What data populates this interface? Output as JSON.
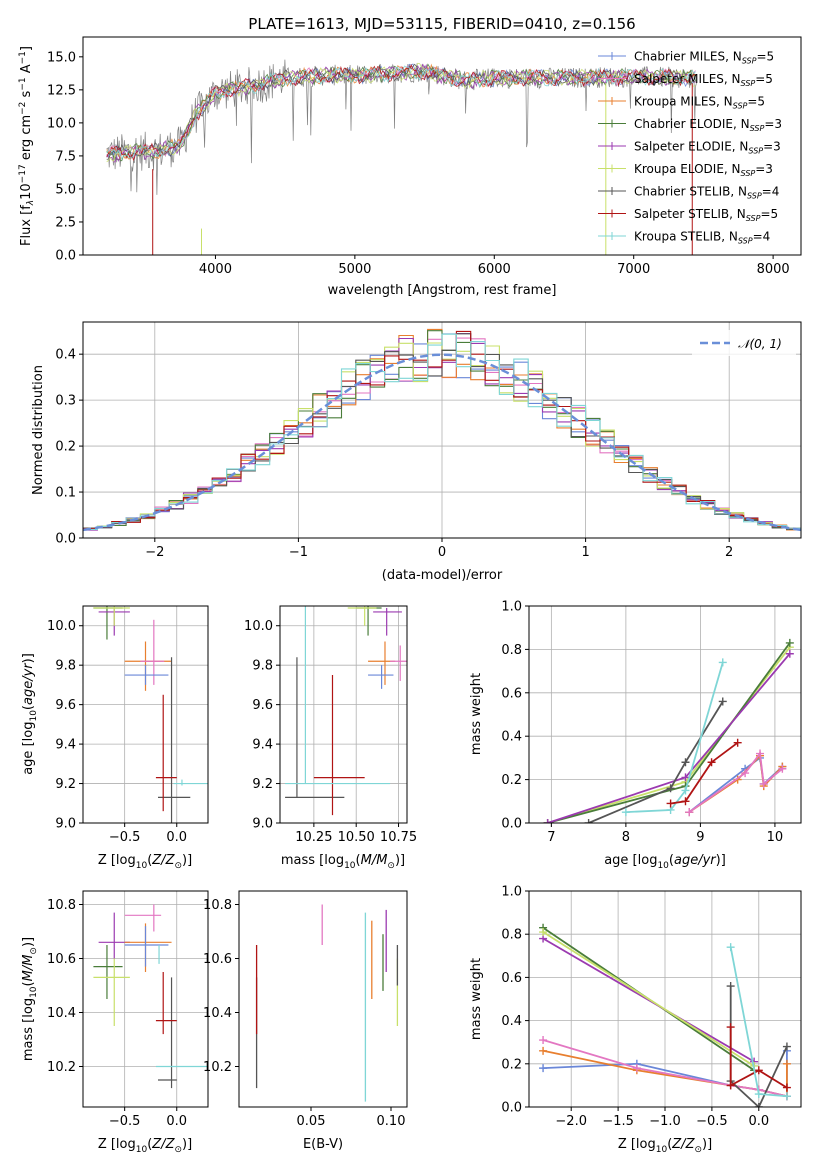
{
  "title": "PLATE=1613, MJD=53115, FIBERID=0410, z=0.156",
  "colors": {
    "chabrier_miles": "#6a87d8",
    "salpeter_miles": "#e377c2",
    "kroupa_miles": "#e87f2f",
    "chabrier_elodie": "#4a7d3a",
    "salpeter_elodie": "#9b3ab0",
    "kroupa_elodie": "#c8e06a",
    "chabrier_stelib": "#555555",
    "salpeter_stelib": "#b01414",
    "kroupa_stelib": "#7fd6d6",
    "data": "#808080"
  },
  "legend": {
    "labels": [
      {
        "pre": "Chabrier MILES, N",
        "sub": "SSP",
        "post": "=5"
      },
      {
        "pre": "Salpeter MILES, N",
        "sub": "SSP",
        "post": "=5"
      },
      {
        "pre": "Kroupa MILES, N",
        "sub": "SSP",
        "post": "=5"
      },
      {
        "pre": "Chabrier ELODIE, N",
        "sub": "SSP",
        "post": "=3"
      },
      {
        "pre": "Salpeter ELODIE, N",
        "sub": "SSP",
        "post": "=3"
      },
      {
        "pre": "Kroupa ELODIE, N",
        "sub": "SSP",
        "post": "=3"
      },
      {
        "pre": "Chabrier STELIB, N",
        "sub": "SSP",
        "post": "=4"
      },
      {
        "pre": "Salpeter STELIB, N",
        "sub": "SSP",
        "post": "=5"
      },
      {
        "pre": "Kroupa STELIB, N",
        "sub": "SSP",
        "post": "=4"
      }
    ],
    "normal_label": "𝒩(0, 1)"
  },
  "chart_data": [
    {
      "type": "line",
      "name": "spectrum",
      "xlabel": "wavelength [Angstrom, rest frame]",
      "ylabel_parts": [
        "Flux [f",
        "λ",
        "10",
        "−17",
        " erg cm",
        "−2",
        " s",
        "−1",
        " A",
        "−1",
        "]"
      ],
      "xlim": [
        3050,
        8200
      ],
      "ylim": [
        0,
        16.5
      ],
      "xticks": [
        4000,
        5000,
        6000,
        7000,
        8000
      ],
      "yticks": [
        0.0,
        2.5,
        5.0,
        7.5,
        10.0,
        12.5,
        15.0
      ],
      "x_range": [
        3220,
        7450
      ],
      "continuum": [
        [
          3220,
          7.6
        ],
        [
          3400,
          7.8
        ],
        [
          3600,
          7.9
        ],
        [
          3750,
          8.3
        ],
        [
          3850,
          10.5
        ],
        [
          4000,
          12.3
        ],
        [
          4300,
          12.9
        ],
        [
          4500,
          13.4
        ],
        [
          4800,
          13.6
        ],
        [
          5000,
          13.6
        ],
        [
          5500,
          13.9
        ],
        [
          5800,
          13.2
        ],
        [
          6000,
          13.4
        ],
        [
          6500,
          13.4
        ],
        [
          7000,
          13.5
        ],
        [
          7450,
          13.4
        ]
      ]
    },
    {
      "type": "histogram",
      "name": "residuals",
      "xlabel": "(data-model)/error",
      "ylabel": "Normed distribution",
      "xlim": [
        -2.5,
        2.5
      ],
      "ylim": [
        0,
        0.47
      ],
      "xticks": [
        -2,
        -1,
        0,
        1,
        2
      ],
      "yticks": [
        0.0,
        0.1,
        0.2,
        0.3,
        0.4
      ],
      "bin_width": 0.1,
      "normal": {
        "mean": 0,
        "sigma": 1,
        "color": "#6a8fd8"
      }
    },
    {
      "type": "scatter",
      "name": "age_vs_Z",
      "xlabel": "Z [log10(Z/Z⊙)]",
      "ylabel": "age  [log10(age/yr)]",
      "xlim": [
        -0.9,
        0.3
      ],
      "ylim": [
        9.0,
        10.1
      ],
      "xticks": [
        -0.5,
        0.0
      ],
      "yticks": [
        9.0,
        9.2,
        9.4,
        9.6,
        9.8,
        10.0
      ],
      "points": [
        {
          "m": "chabrier_elodie",
          "x": -0.67,
          "y": 10.09,
          "xe": [
            -0.8,
            -0.52
          ],
          "ye": [
            9.93,
            10.1
          ]
        },
        {
          "m": "salpeter_elodie",
          "x": -0.6,
          "y": 10.07,
          "xe": [
            -0.75,
            -0.45
          ],
          "ye": [
            9.95,
            10.09
          ]
        },
        {
          "m": "kroupa_elodie",
          "x": -0.6,
          "y": 10.09,
          "xe": [
            -0.8,
            -0.45
          ],
          "ye": [
            10.0,
            10.1
          ]
        },
        {
          "m": "kroupa_miles",
          "x": -0.3,
          "y": 9.82,
          "xe": [
            -0.5,
            -0.05
          ],
          "ye": [
            9.67,
            9.92
          ]
        },
        {
          "m": "salpeter_miles",
          "x": -0.22,
          "y": 9.82,
          "xe": [
            -0.35,
            -0.12
          ],
          "ye": [
            9.7,
            10.03
          ]
        },
        {
          "m": "chabrier_miles",
          "x": -0.3,
          "y": 9.75,
          "xe": [
            -0.5,
            -0.08
          ],
          "ye": [
            9.7,
            9.8
          ]
        },
        {
          "m": "chabrier_stelib",
          "x": -0.05,
          "y": 9.13,
          "xe": [
            -0.18,
            0.13
          ],
          "ye": [
            9.0,
            9.84
          ]
        },
        {
          "m": "salpeter_stelib",
          "x": -0.13,
          "y": 9.23,
          "xe": [
            -0.2,
            0.0
          ],
          "ye": [
            9.06,
            9.65
          ]
        },
        {
          "m": "kroupa_stelib",
          "x": 0.05,
          "y": 9.2,
          "xe": [
            -0.03,
            0.35
          ],
          "ye": [
            9.19,
            9.22
          ]
        }
      ]
    },
    {
      "type": "scatter",
      "name": "age_vs_mass",
      "xlabel": "mass [log10(M/M⊙)]",
      "xlim": [
        10.05,
        10.8
      ],
      "ylim": [
        9.0,
        10.1
      ],
      "xticks": [
        10.25,
        10.5,
        10.75
      ],
      "yticks": [
        9.0,
        9.2,
        9.4,
        9.6,
        9.8,
        10.0
      ],
      "points": [
        {
          "m": "chabrier_elodie",
          "x": 10.57,
          "y": 10.09,
          "xe": [
            10.5,
            10.65
          ],
          "ye": [
            9.95,
            10.1
          ]
        },
        {
          "m": "salpeter_elodie",
          "x": 10.68,
          "y": 10.07,
          "xe": [
            10.6,
            10.77
          ],
          "ye": [
            9.95,
            10.09
          ]
        },
        {
          "m": "kroupa_elodie",
          "x": 10.55,
          "y": 10.09,
          "xe": [
            10.45,
            10.62
          ],
          "ye": [
            10.0,
            10.1
          ]
        },
        {
          "m": "kroupa_miles",
          "x": 10.67,
          "y": 9.82,
          "xe": [
            10.57,
            10.73
          ],
          "ye": [
            9.7,
            9.92
          ]
        },
        {
          "m": "salpeter_miles",
          "x": 10.76,
          "y": 9.82,
          "xe": [
            10.7,
            10.8
          ],
          "ye": [
            9.72,
            9.9
          ]
        },
        {
          "m": "chabrier_miles",
          "x": 10.65,
          "y": 9.75,
          "xe": [
            10.57,
            10.72
          ],
          "ye": [
            9.68,
            9.8
          ]
        },
        {
          "m": "chabrier_stelib",
          "x": 10.15,
          "y": 9.13,
          "xe": [
            10.08,
            10.43
          ],
          "ye": [
            9.13,
            9.84
          ]
        },
        {
          "m": "salpeter_stelib",
          "x": 10.36,
          "y": 9.23,
          "xe": [
            10.25,
            10.55
          ],
          "ye": [
            9.04,
            9.75
          ]
        },
        {
          "m": "kroupa_stelib",
          "x": 10.2,
          "y": 9.2,
          "xe": [
            10.08,
            10.7
          ],
          "ye": [
            9.2,
            10.1
          ]
        }
      ]
    },
    {
      "type": "line",
      "name": "mass_weight_vs_age",
      "xlabel": "age  [log10(age/yr)]",
      "ylabel": "mass weight",
      "xlim": [
        6.7,
        10.35
      ],
      "ylim": [
        0.0,
        1.0
      ],
      "xticks": [
        7,
        8,
        9,
        10
      ],
      "yticks": [
        0.0,
        0.2,
        0.4,
        0.6,
        0.8,
        1.0
      ],
      "series": [
        {
          "m": "kroupa_elodie",
          "x": [
            6.95,
            8.8,
            10.2
          ],
          "y": [
            0.0,
            0.19,
            0.81
          ]
        },
        {
          "m": "chabrier_elodie",
          "x": [
            6.95,
            8.8,
            10.2
          ],
          "y": [
            0.0,
            0.17,
            0.83
          ]
        },
        {
          "m": "salpeter_elodie",
          "x": [
            6.95,
            8.8,
            10.2
          ],
          "y": [
            0.0,
            0.21,
            0.78
          ]
        },
        {
          "m": "chabrier_stelib",
          "x": [
            7.5,
            8.6,
            8.8,
            9.3
          ],
          "y": [
            0.0,
            0.16,
            0.28,
            0.56
          ]
        },
        {
          "m": "kroupa_stelib",
          "x": [
            8.0,
            8.6,
            8.8,
            9.3
          ],
          "y": [
            0.05,
            0.06,
            0.15,
            0.74
          ]
        },
        {
          "m": "salpeter_stelib",
          "x": [
            8.6,
            8.8,
            9.15,
            9.5
          ],
          "y": [
            0.09,
            0.1,
            0.28,
            0.37
          ]
        },
        {
          "m": "chabrier_miles",
          "x": [
            8.85,
            9.6,
            9.8,
            9.85,
            10.1
          ],
          "y": [
            0.05,
            0.25,
            0.3,
            0.18,
            0.26
          ]
        },
        {
          "m": "kroupa_miles",
          "x": [
            8.85,
            9.5,
            9.8,
            9.85,
            10.1
          ],
          "y": [
            0.05,
            0.2,
            0.31,
            0.17,
            0.26
          ]
        },
        {
          "m": "salpeter_miles",
          "x": [
            8.85,
            9.6,
            9.8,
            9.85,
            10.1
          ],
          "y": [
            0.05,
            0.23,
            0.32,
            0.18,
            0.25
          ]
        }
      ]
    },
    {
      "type": "scatter",
      "name": "mass_vs_Z",
      "xlabel": "Z [log10(Z/Z⊙)]",
      "ylabel": "mass [log10(M/M⊙)]",
      "xlim": [
        -0.9,
        0.3
      ],
      "ylim": [
        10.05,
        10.85
      ],
      "xticks": [
        -0.5,
        0.0
      ],
      "yticks": [
        10.2,
        10.4,
        10.6,
        10.8
      ],
      "points": [
        {
          "m": "chabrier_elodie",
          "x": -0.67,
          "y": 10.57,
          "xe": [
            -0.8,
            -0.52
          ],
          "ye": [
            10.45,
            10.65
          ]
        },
        {
          "m": "salpeter_elodie",
          "x": -0.6,
          "y": 10.66,
          "xe": [
            -0.75,
            -0.45
          ],
          "ye": [
            10.6,
            10.77
          ]
        },
        {
          "m": "kroupa_elodie",
          "x": -0.6,
          "y": 10.53,
          "xe": [
            -0.8,
            -0.45
          ],
          "ye": [
            10.35,
            10.6
          ]
        },
        {
          "m": "kroupa_miles",
          "x": -0.3,
          "y": 10.66,
          "xe": [
            -0.5,
            -0.05
          ],
          "ye": [
            10.55,
            10.73
          ]
        },
        {
          "m": "salpeter_miles",
          "x": -0.22,
          "y": 10.76,
          "xe": [
            -0.5,
            -0.15
          ],
          "ye": [
            10.7,
            10.8
          ]
        },
        {
          "m": "chabrier_miles",
          "x": -0.3,
          "y": 10.65,
          "xe": [
            -0.5,
            -0.08
          ],
          "ye": [
            10.57,
            10.72
          ]
        },
        {
          "m": "chabrier_stelib",
          "x": -0.05,
          "y": 10.15,
          "xe": [
            -0.18,
            0.0
          ],
          "ye": [
            10.12,
            10.53
          ]
        },
        {
          "m": "salpeter_stelib",
          "x": -0.13,
          "y": 10.37,
          "xe": [
            -0.2,
            0.0
          ],
          "ye": [
            10.32,
            10.55
          ]
        },
        {
          "m": "kroupa_stelib",
          "x": 0.05,
          "y": 10.2,
          "xe": [
            -0.2,
            0.3
          ],
          "ye": [
            10.2,
            10.2
          ]
        },
        {
          "m": "kroupa_stelib",
          "x": -0.17,
          "y": 10.62,
          "xe": [
            -0.17,
            -0.17
          ],
          "ye": [
            10.58,
            10.65
          ]
        }
      ]
    },
    {
      "type": "errorbar",
      "name": "mass_vs_EBV",
      "xlabel": "E(B-V)",
      "xlim": [
        0.005,
        0.11
      ],
      "ylim": [
        10.05,
        10.85
      ],
      "xticks": [
        0.05,
        0.1
      ],
      "yticks": [
        10.2,
        10.4,
        10.6,
        10.8
      ],
      "bars": [
        {
          "m": "chabrier_stelib",
          "x": 0.016,
          "ye": [
            10.12,
            10.53
          ]
        },
        {
          "m": "salpeter_stelib",
          "x": 0.016,
          "ye": [
            10.32,
            10.65
          ]
        },
        {
          "m": "salpeter_miles",
          "x": 0.057,
          "ye": [
            10.65,
            10.8
          ]
        },
        {
          "m": "kroupa_stelib",
          "x": 0.084,
          "ye": [
            10.07,
            10.77
          ]
        },
        {
          "m": "kroupa_miles",
          "x": 0.088,
          "ye": [
            10.45,
            10.74
          ]
        },
        {
          "m": "chabrier_elodie",
          "x": 0.095,
          "ye": [
            10.48,
            10.69
          ]
        },
        {
          "m": "salpeter_elodie",
          "x": 0.097,
          "ye": [
            10.55,
            10.78
          ]
        },
        {
          "m": "kroupa_elodie",
          "x": 0.104,
          "ye": [
            10.35,
            10.6
          ]
        },
        {
          "m": "chabrier_stelib",
          "x": 0.104,
          "ye": [
            10.5,
            10.65
          ]
        }
      ]
    },
    {
      "type": "line",
      "name": "mass_weight_vs_Z",
      "xlabel": "Z [log10(Z/Z⊙)]",
      "ylabel": "mass weight",
      "xlim": [
        -2.45,
        0.45
      ],
      "ylim": [
        0.0,
        1.0
      ],
      "xticks": [
        -2.0,
        -1.5,
        -1.0,
        -0.5,
        0.0
      ],
      "yticks": [
        0.0,
        0.2,
        0.4,
        0.6,
        0.8,
        1.0
      ],
      "series": [
        {
          "m": "chabrier_elodie",
          "x": [
            -2.3,
            -0.05
          ],
          "y": [
            0.83,
            0.17
          ]
        },
        {
          "m": "salpeter_elodie",
          "x": [
            -2.3,
            -0.05
          ],
          "y": [
            0.78,
            0.21
          ]
        },
        {
          "m": "kroupa_elodie",
          "x": [
            -2.3,
            -0.05
          ],
          "y": [
            0.81,
            0.19
          ]
        },
        {
          "m": "chabrier_miles",
          "x": [
            -2.3,
            -1.3,
            -0.3,
            0.0,
            0.3,
            0.3
          ],
          "y": [
            0.18,
            0.2,
            0.1,
            0.08,
            0.05,
            0.26
          ]
        },
        {
          "m": "kroupa_miles",
          "x": [
            -2.3,
            -1.3,
            -0.3,
            0.0,
            0.3,
            0.3
          ],
          "y": [
            0.26,
            0.17,
            0.1,
            0.08,
            0.05,
            0.2
          ]
        },
        {
          "m": "salpeter_miles",
          "x": [
            -2.3,
            -1.3,
            -0.3,
            0.0,
            0.3
          ],
          "y": [
            0.31,
            0.18,
            0.1,
            0.08,
            0.05
          ]
        },
        {
          "m": "chabrier_stelib",
          "x": [
            -0.3,
            -0.3,
            0.0,
            0.3
          ],
          "y": [
            0.56,
            0.12,
            0.0,
            0.28
          ]
        },
        {
          "m": "salpeter_stelib",
          "x": [
            -0.3,
            -0.3,
            0.0,
            0.3
          ],
          "y": [
            0.37,
            0.1,
            0.17,
            0.09
          ]
        },
        {
          "m": "kroupa_stelib",
          "x": [
            -0.3,
            0.0,
            0.3
          ],
          "y": [
            0.74,
            0.06,
            0.05
          ]
        }
      ]
    }
  ]
}
